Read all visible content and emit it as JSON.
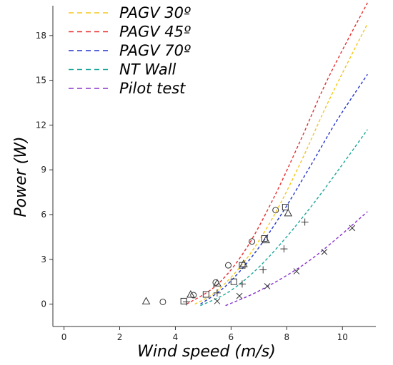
{
  "chart_data": {
    "type": "scatter",
    "title": "",
    "xlabel": "Wind speed (m/s)",
    "ylabel": "Power (W)",
    "xlim": [
      -0.4,
      11.2
    ],
    "ylim": [
      -1.5,
      20
    ],
    "xticks": [
      0,
      2,
      4,
      6,
      8,
      10
    ],
    "yticks": [
      0,
      3,
      6,
      9,
      12,
      15,
      18
    ],
    "grid": false,
    "legend_position": "top-left",
    "series": [
      {
        "name": "PAGV 30º",
        "color": "#f5c518",
        "marker": "square",
        "points": [
          [
            4.3,
            0.2
          ],
          [
            5.1,
            0.65
          ],
          [
            6.1,
            1.5
          ],
          [
            6.4,
            2.6
          ],
          [
            7.2,
            4.4
          ],
          [
            7.95,
            6.5
          ]
        ],
        "curve": [
          [
            4.7,
            0.0
          ],
          [
            5.5,
            0.9
          ],
          [
            6.5,
            2.9
          ],
          [
            7.5,
            5.8
          ],
          [
            8.5,
            9.5
          ],
          [
            9.5,
            13.6
          ],
          [
            10.9,
            18.8
          ]
        ]
      },
      {
        "name": "PAGV 45º",
        "color": "#e83030",
        "marker": "circle",
        "points": [
          [
            3.55,
            0.15
          ],
          [
            4.65,
            0.6
          ],
          [
            5.45,
            1.45
          ],
          [
            5.9,
            2.6
          ],
          [
            6.75,
            4.2
          ],
          [
            7.6,
            6.3
          ]
        ],
        "curve": [
          [
            4.4,
            0.0
          ],
          [
            5.5,
            1.3
          ],
          [
            6.5,
            3.6
          ],
          [
            7.5,
            7.0
          ],
          [
            8.5,
            11.0
          ],
          [
            9.5,
            15.2
          ],
          [
            10.9,
            20.2
          ]
        ]
      },
      {
        "name": "PAGV 70º",
        "color": "#2233cc",
        "marker": "triangle",
        "points": [
          [
            2.95,
            0.2
          ],
          [
            4.55,
            0.65
          ],
          [
            5.5,
            1.4
          ],
          [
            6.45,
            2.7
          ],
          [
            7.25,
            4.3
          ],
          [
            8.05,
            6.1
          ]
        ],
        "curve": [
          [
            4.9,
            0.0
          ],
          [
            5.8,
            1.2
          ],
          [
            6.8,
            3.3
          ],
          [
            7.8,
            6.0
          ],
          [
            8.8,
            9.1
          ],
          [
            9.8,
            12.3
          ],
          [
            10.9,
            15.4
          ]
        ]
      },
      {
        "name": "NT Wall",
        "color": "#1aa89a",
        "marker": "plus",
        "points": [
          [
            4.4,
            0.15
          ],
          [
            5.5,
            0.75
          ],
          [
            6.4,
            1.35
          ],
          [
            7.15,
            2.3
          ],
          [
            7.9,
            3.7
          ],
          [
            8.65,
            5.5
          ]
        ],
        "curve": [
          [
            4.9,
            -0.1
          ],
          [
            5.9,
            0.8
          ],
          [
            6.9,
            2.3
          ],
          [
            7.9,
            4.3
          ],
          [
            8.9,
            6.6
          ],
          [
            9.9,
            9.1
          ],
          [
            10.9,
            11.7
          ]
        ]
      },
      {
        "name": "Pilot test",
        "color": "#8833cc",
        "marker": "x",
        "points": [
          [
            5.5,
            0.2
          ],
          [
            6.3,
            0.55
          ],
          [
            7.3,
            1.2
          ],
          [
            8.35,
            2.2
          ],
          [
            9.35,
            3.5
          ],
          [
            10.35,
            5.1
          ]
        ],
        "curve": [
          [
            5.8,
            -0.1
          ],
          [
            6.8,
            0.7
          ],
          [
            7.8,
            1.7
          ],
          [
            8.8,
            2.9
          ],
          [
            9.8,
            4.4
          ],
          [
            10.9,
            6.2
          ]
        ]
      }
    ]
  }
}
